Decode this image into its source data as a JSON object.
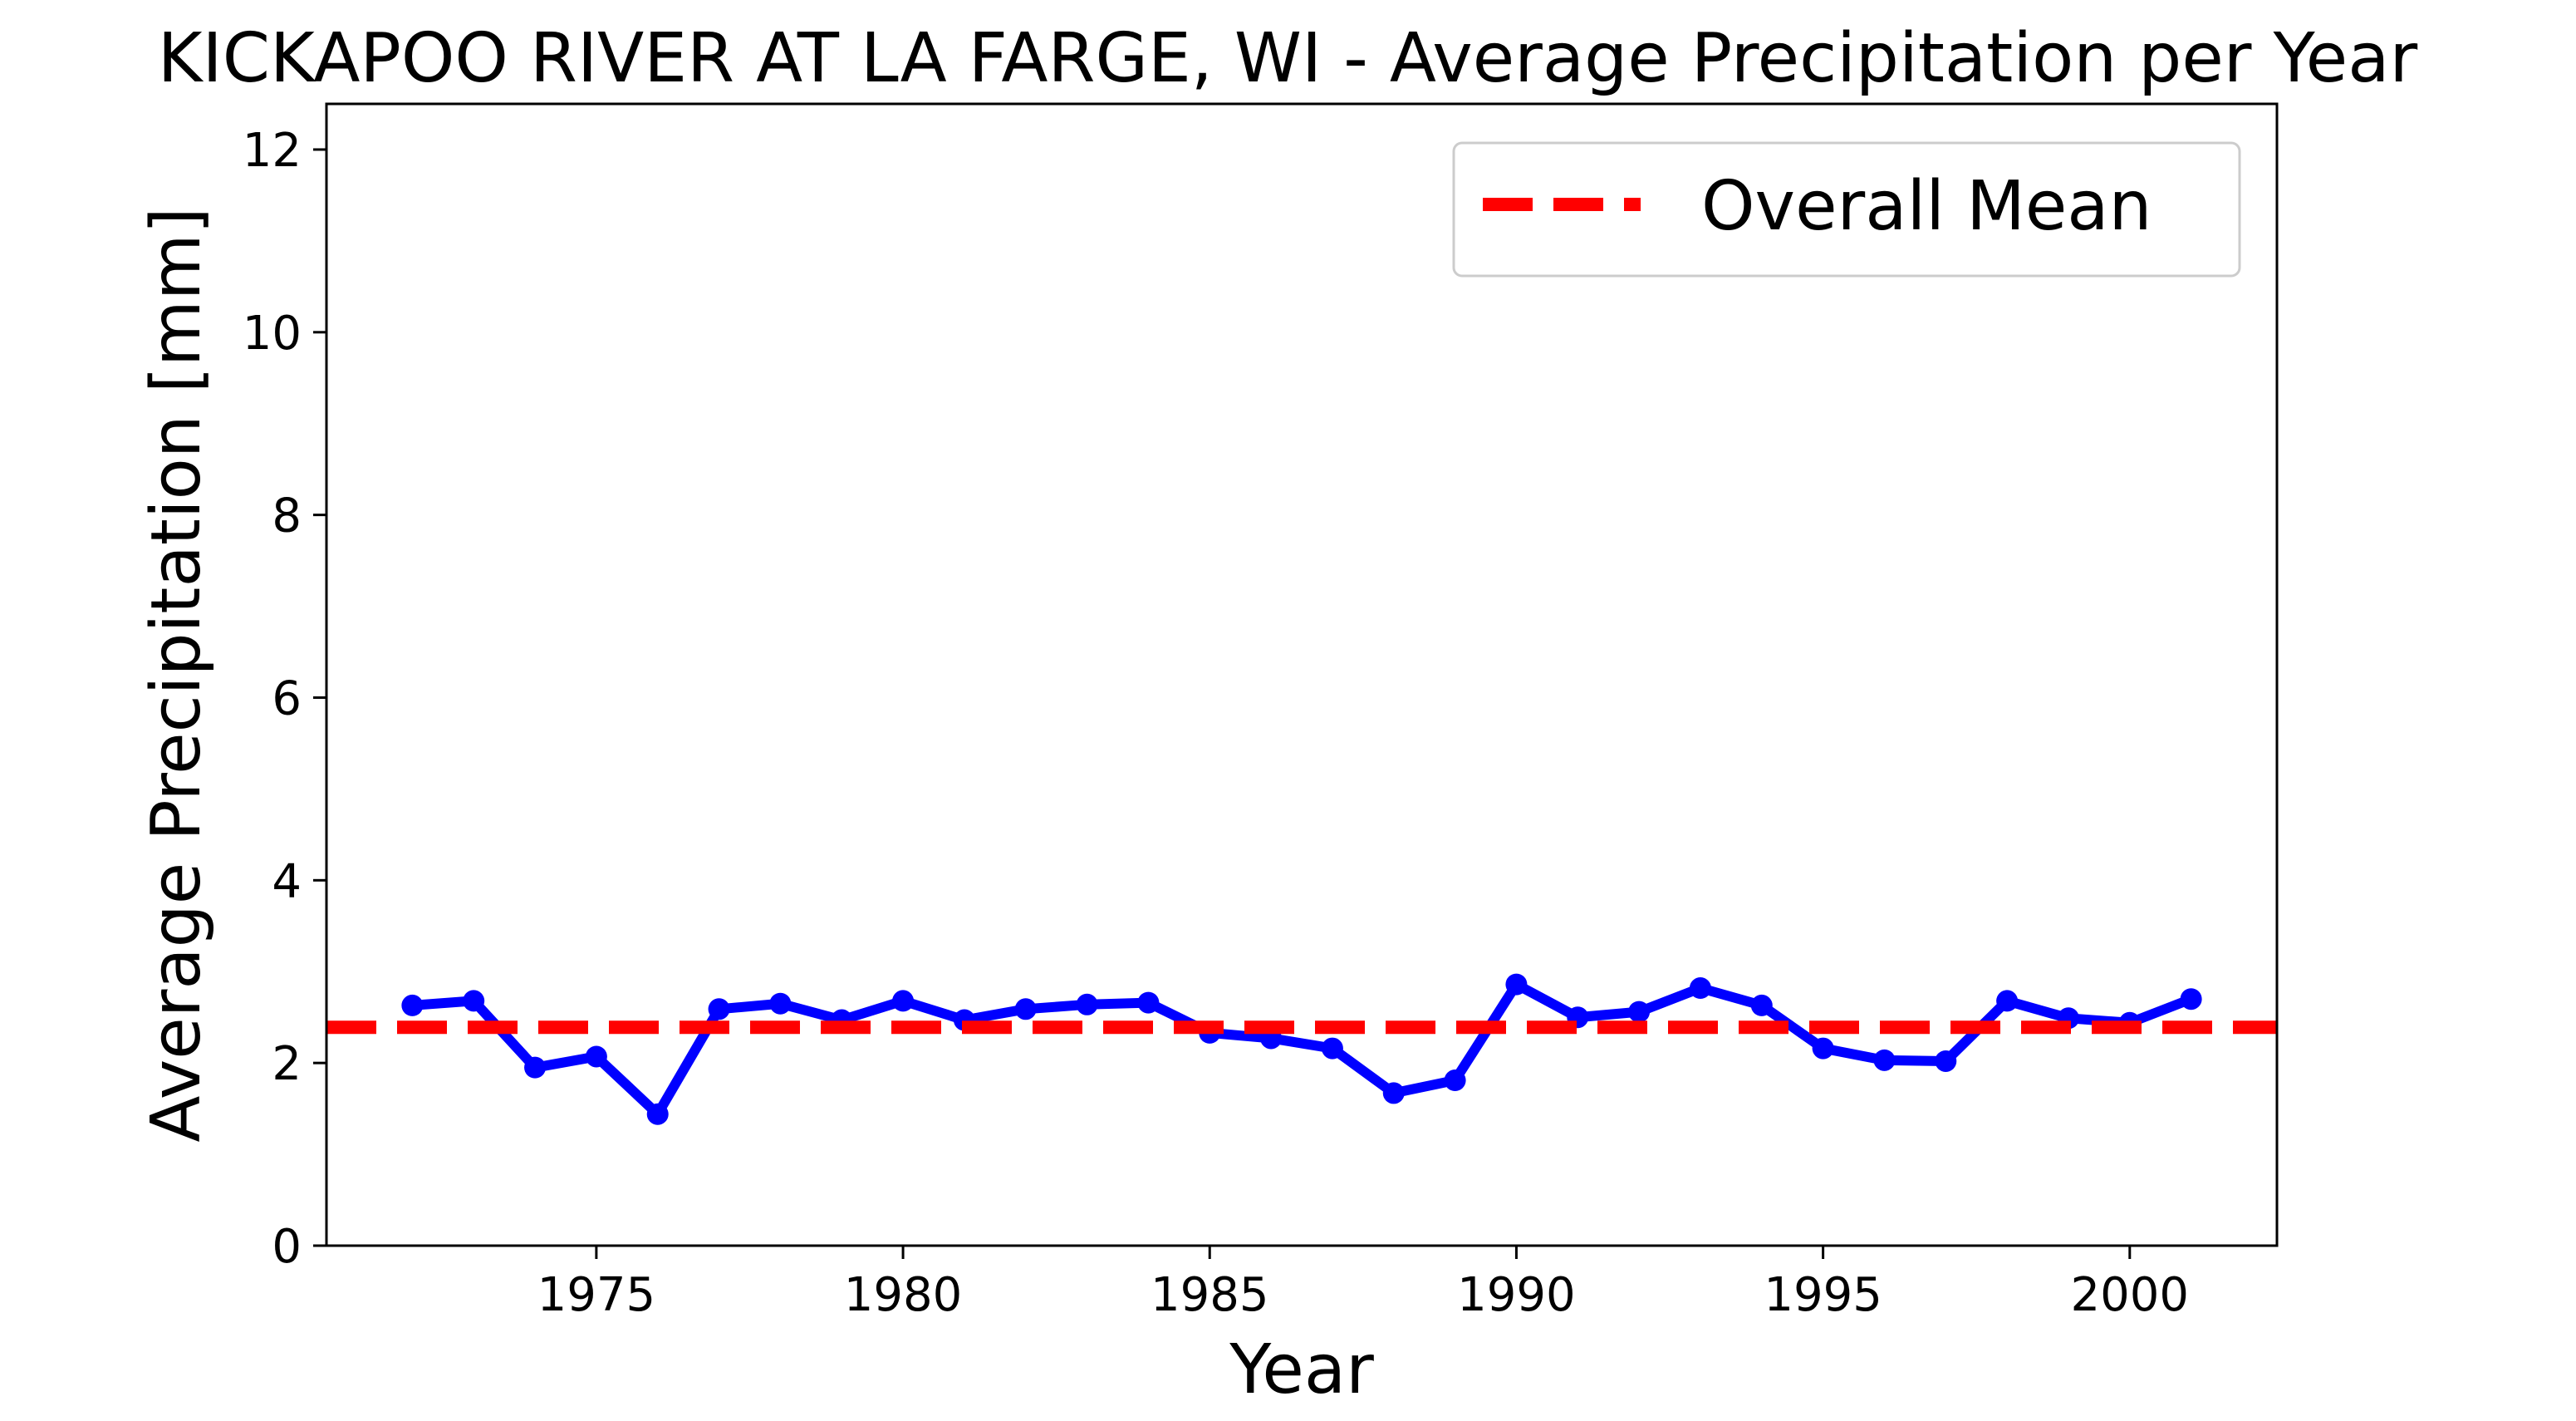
{
  "chart_data": {
    "type": "line",
    "title": "KICKAPOO RIVER AT LA FARGE, WI - Average Precipitation per Year",
    "xlabel": "Year",
    "ylabel": "Average Precipitation [mm]",
    "xlim": [
      1970.6,
      2002.4
    ],
    "ylim": [
      0,
      12.5
    ],
    "xticks": [
      1975,
      1980,
      1985,
      1990,
      1995,
      2000
    ],
    "yticks": [
      0,
      2,
      4,
      6,
      8,
      10,
      12
    ],
    "grid": false,
    "legend_position": "top-right",
    "x": [
      1972,
      1973,
      1974,
      1975,
      1976,
      1977,
      1978,
      1979,
      1980,
      1981,
      1982,
      1983,
      1984,
      1985,
      1986,
      1987,
      1988,
      1989,
      1990,
      1991,
      1992,
      1993,
      1994,
      1995,
      1996,
      1997,
      1998,
      1999,
      2000,
      2001
    ],
    "series": [
      {
        "color": "#0000ff",
        "marker": "circle",
        "values": [
          2.63,
          2.68,
          1.95,
          2.07,
          1.44,
          2.59,
          2.65,
          2.47,
          2.68,
          2.47,
          2.59,
          2.64,
          2.66,
          2.33,
          2.27,
          2.16,
          1.67,
          1.81,
          2.86,
          2.5,
          2.56,
          2.82,
          2.63,
          2.16,
          2.03,
          2.02,
          2.68,
          2.49,
          2.44,
          2.7
        ]
      }
    ],
    "mean_line": {
      "label": "Overall Mean",
      "value": 2.39,
      "color": "#ff0000",
      "style": "dashed"
    }
  }
}
